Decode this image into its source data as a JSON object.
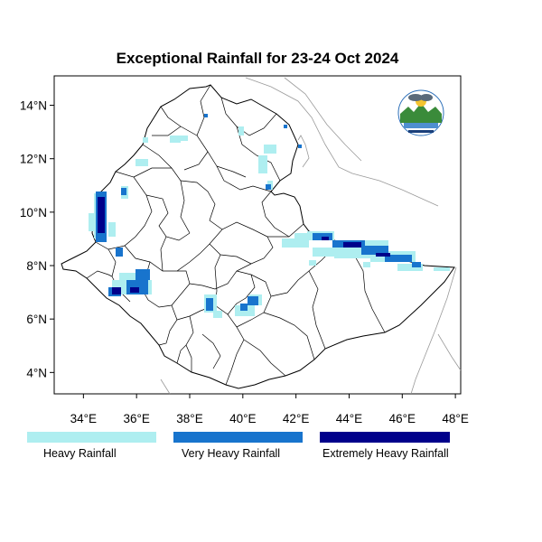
{
  "title": "Exceptional Rainfall for 23-24 Oct 2024",
  "map": {
    "lon_range": [
      32.9,
      48.2
    ],
    "lat_range": [
      3.2,
      15.1
    ],
    "lon_ticks": [
      {
        "value": 34,
        "label": "34°E"
      },
      {
        "value": 36,
        "label": "36°E"
      },
      {
        "value": 38,
        "label": "38°E"
      },
      {
        "value": 40,
        "label": "40°E"
      },
      {
        "value": 42,
        "label": "42°E"
      },
      {
        "value": 44,
        "label": "44°E"
      },
      {
        "value": 46,
        "label": "46°E"
      },
      {
        "value": 48,
        "label": "48°E"
      }
    ],
    "lat_ticks": [
      {
        "value": 14,
        "label": "14°N"
      },
      {
        "value": 12,
        "label": "12°N"
      },
      {
        "value": 10,
        "label": "10°N"
      },
      {
        "value": 8,
        "label": "8°N"
      },
      {
        "value": 6,
        "label": "6°N"
      },
      {
        "value": 4,
        "label": "4°N"
      }
    ],
    "logo": "meteorology-institute-logo"
  },
  "legend": [
    {
      "label": "Heavy Rainfall",
      "color": "#aeeef0"
    },
    {
      "label": "Very Heavy Rainfall",
      "color": "#1874cd"
    },
    {
      "label": "Extremely Heavy Rainfall",
      "color": "#00008b"
    }
  ]
}
